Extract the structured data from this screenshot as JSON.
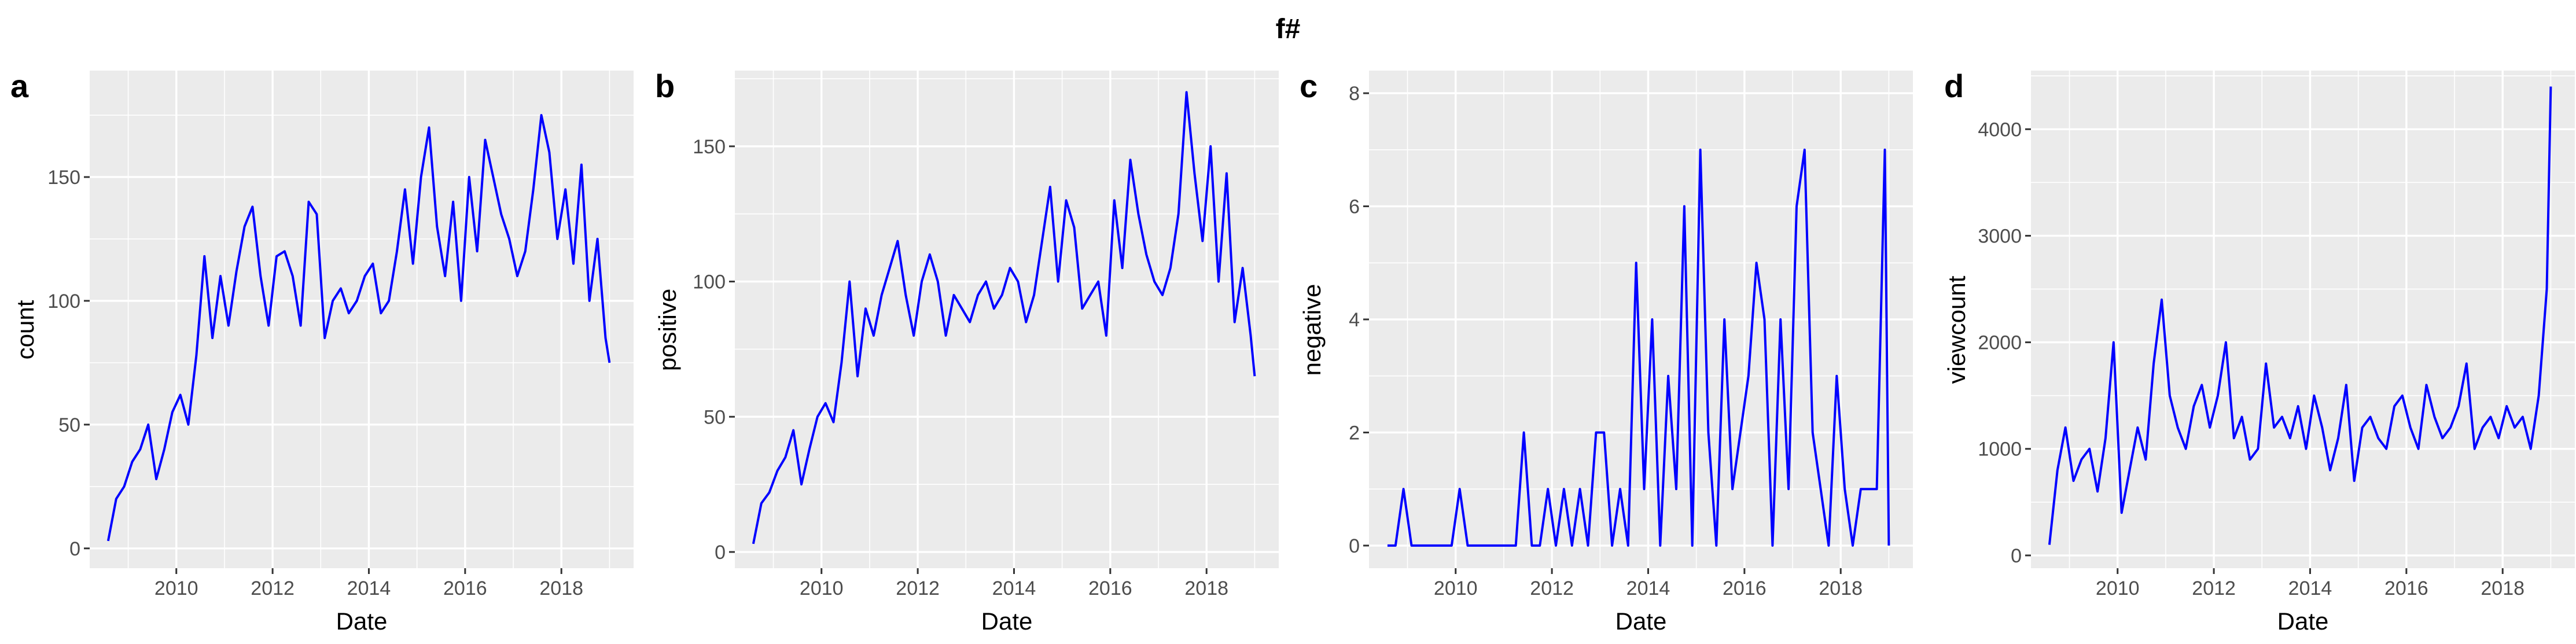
{
  "figure": {
    "title": "f#"
  },
  "chart_data": [
    {
      "panel": "a",
      "type": "line",
      "xlabel": "Date",
      "ylabel": "count",
      "xlim": [
        2008.2,
        2019.5
      ],
      "ylim": [
        -8,
        193
      ],
      "xticks": [
        2010,
        2012,
        2014,
        2016,
        2018
      ],
      "yticks": [
        0,
        50,
        100,
        150
      ],
      "color": "#0000ff",
      "x": [
        "2008-08",
        "2008-10",
        "2008-12",
        "2009-02",
        "2009-04",
        "2009-06",
        "2009-08",
        "2009-10",
        "2009-12",
        "2010-02",
        "2010-04",
        "2010-06",
        "2010-08",
        "2010-10",
        "2010-12",
        "2011-02",
        "2011-04",
        "2011-06",
        "2011-08",
        "2011-10",
        "2011-12",
        "2012-02",
        "2012-04",
        "2012-06",
        "2012-08",
        "2012-10",
        "2012-12",
        "2013-02",
        "2013-04",
        "2013-06",
        "2013-08",
        "2013-10",
        "2013-12",
        "2014-02",
        "2014-04",
        "2014-06",
        "2014-08",
        "2014-10",
        "2014-12",
        "2015-02",
        "2015-04",
        "2015-06",
        "2015-08",
        "2015-10",
        "2015-12",
        "2016-02",
        "2016-04",
        "2016-06",
        "2016-08",
        "2016-10",
        "2016-12",
        "2017-02",
        "2017-04",
        "2017-06",
        "2017-08",
        "2017-10",
        "2017-12",
        "2018-02",
        "2018-04",
        "2018-06",
        "2018-08",
        "2018-10",
        "2018-12",
        "2019-01"
      ],
      "values": [
        3,
        20,
        25,
        35,
        40,
        50,
        28,
        40,
        55,
        62,
        50,
        78,
        118,
        85,
        110,
        90,
        112,
        130,
        138,
        110,
        90,
        118,
        120,
        110,
        90,
        140,
        135,
        85,
        100,
        105,
        95,
        100,
        110,
        115,
        95,
        100,
        120,
        145,
        115,
        150,
        170,
        130,
        110,
        140,
        100,
        150,
        120,
        165,
        150,
        135,
        125,
        110,
        120,
        145,
        175,
        160,
        125,
        145,
        115,
        155,
        100,
        125,
        85,
        75
      ]
    },
    {
      "panel": "b",
      "type": "line",
      "xlabel": "Date",
      "ylabel": "positive",
      "xlim": [
        2008.2,
        2019.5
      ],
      "ylim": [
        -6,
        178
      ],
      "xticks": [
        2010,
        2012,
        2014,
        2016,
        2018
      ],
      "yticks": [
        0,
        50,
        100,
        150
      ],
      "color": "#0000ff",
      "x": [
        "2008-08",
        "2008-10",
        "2008-12",
        "2009-02",
        "2009-04",
        "2009-06",
        "2009-08",
        "2009-10",
        "2009-12",
        "2010-02",
        "2010-04",
        "2010-06",
        "2010-08",
        "2010-10",
        "2010-12",
        "2011-02",
        "2011-04",
        "2011-06",
        "2011-08",
        "2011-10",
        "2011-12",
        "2012-02",
        "2012-04",
        "2012-06",
        "2012-08",
        "2012-10",
        "2012-12",
        "2013-02",
        "2013-04",
        "2013-06",
        "2013-08",
        "2013-10",
        "2013-12",
        "2014-02",
        "2014-04",
        "2014-06",
        "2014-08",
        "2014-10",
        "2014-12",
        "2015-02",
        "2015-04",
        "2015-06",
        "2015-08",
        "2015-10",
        "2015-12",
        "2016-02",
        "2016-04",
        "2016-06",
        "2016-08",
        "2016-10",
        "2016-12",
        "2017-02",
        "2017-04",
        "2017-06",
        "2017-08",
        "2017-10",
        "2017-12",
        "2018-02",
        "2018-04",
        "2018-06",
        "2018-08",
        "2018-10",
        "2018-12",
        "2019-01"
      ],
      "values": [
        3,
        18,
        22,
        30,
        35,
        45,
        25,
        38,
        50,
        55,
        48,
        70,
        100,
        65,
        90,
        80,
        95,
        105,
        115,
        95,
        80,
        100,
        110,
        100,
        80,
        95,
        90,
        85,
        95,
        100,
        90,
        95,
        105,
        100,
        85,
        95,
        115,
        135,
        100,
        130,
        120,
        90,
        95,
        100,
        80,
        130,
        105,
        145,
        125,
        110,
        100,
        95,
        105,
        125,
        170,
        140,
        115,
        150,
        100,
        140,
        85,
        105,
        80,
        65
      ]
    },
    {
      "panel": "c",
      "type": "line",
      "xlabel": "Date",
      "ylabel": "negative",
      "xlim": [
        2008.2,
        2019.5
      ],
      "ylim": [
        -0.4,
        8.4
      ],
      "xticks": [
        2010,
        2012,
        2014,
        2016,
        2018
      ],
      "yticks": [
        0,
        2,
        4,
        6,
        8
      ],
      "color": "#0000ff",
      "x": [
        "2008-08",
        "2008-10",
        "2008-12",
        "2009-02",
        "2009-04",
        "2009-06",
        "2009-08",
        "2009-10",
        "2009-12",
        "2010-02",
        "2010-04",
        "2010-06",
        "2010-08",
        "2010-10",
        "2010-12",
        "2011-02",
        "2011-04",
        "2011-06",
        "2011-08",
        "2011-10",
        "2011-12",
        "2012-02",
        "2012-04",
        "2012-06",
        "2012-08",
        "2012-10",
        "2012-12",
        "2013-02",
        "2013-04",
        "2013-06",
        "2013-08",
        "2013-10",
        "2013-12",
        "2014-02",
        "2014-04",
        "2014-06",
        "2014-08",
        "2014-10",
        "2014-12",
        "2015-02",
        "2015-04",
        "2015-06",
        "2015-08",
        "2015-10",
        "2015-12",
        "2016-02",
        "2016-04",
        "2016-06",
        "2016-08",
        "2016-10",
        "2016-12",
        "2017-02",
        "2017-04",
        "2017-06",
        "2017-08",
        "2017-10",
        "2017-12",
        "2018-02",
        "2018-04",
        "2018-06",
        "2018-08",
        "2018-10",
        "2018-12",
        "2019-01"
      ],
      "values": [
        0,
        0,
        1,
        0,
        0,
        0,
        0,
        0,
        0,
        1,
        0,
        0,
        0,
        0,
        0,
        0,
        0,
        2,
        0,
        0,
        1,
        0,
        1,
        0,
        1,
        0,
        2,
        2,
        0,
        1,
        0,
        5,
        1,
        4,
        0,
        3,
        1,
        6,
        0,
        7,
        2,
        0,
        4,
        1,
        2,
        3,
        5,
        4,
        0,
        4,
        1,
        6,
        7,
        2,
        1,
        0,
        3,
        1,
        0,
        1,
        1,
        1,
        7,
        0
      ]
    },
    {
      "panel": "d",
      "type": "line",
      "xlabel": "Date",
      "ylabel": "viewcount",
      "xlim": [
        2008.2,
        2019.5
      ],
      "ylim": [
        -120,
        4550
      ],
      "xticks": [
        2010,
        2012,
        2014,
        2016,
        2018
      ],
      "yticks": [
        0,
        1000,
        2000,
        3000,
        4000
      ],
      "color": "#0000ff",
      "x": [
        "2008-08",
        "2008-10",
        "2008-12",
        "2009-02",
        "2009-04",
        "2009-06",
        "2009-08",
        "2009-10",
        "2009-12",
        "2010-02",
        "2010-04",
        "2010-06",
        "2010-08",
        "2010-10",
        "2010-12",
        "2011-02",
        "2011-04",
        "2011-06",
        "2011-08",
        "2011-10",
        "2011-12",
        "2012-02",
        "2012-04",
        "2012-06",
        "2012-08",
        "2012-10",
        "2012-12",
        "2013-02",
        "2013-04",
        "2013-06",
        "2013-08",
        "2013-10",
        "2013-12",
        "2014-02",
        "2014-04",
        "2014-06",
        "2014-08",
        "2014-10",
        "2014-12",
        "2015-02",
        "2015-04",
        "2015-06",
        "2015-08",
        "2015-10",
        "2015-12",
        "2016-02",
        "2016-04",
        "2016-06",
        "2016-08",
        "2016-10",
        "2016-12",
        "2017-02",
        "2017-04",
        "2017-06",
        "2017-08",
        "2017-10",
        "2017-12",
        "2018-02",
        "2018-04",
        "2018-06",
        "2018-08",
        "2018-10",
        "2018-12",
        "2019-01"
      ],
      "values": [
        100,
        800,
        1200,
        700,
        900,
        1000,
        600,
        1100,
        2000,
        400,
        800,
        1200,
        900,
        1800,
        2400,
        1500,
        1200,
        1000,
        1400,
        1600,
        1200,
        1500,
        2000,
        1100,
        1300,
        900,
        1000,
        1800,
        1200,
        1300,
        1100,
        1400,
        1000,
        1500,
        1200,
        800,
        1100,
        1600,
        700,
        1200,
        1300,
        1100,
        1000,
        1400,
        1500,
        1200,
        1000,
        1600,
        1300,
        1100,
        1200,
        1400,
        1800,
        1000,
        1200,
        1300,
        1100,
        1400,
        1200,
        1300,
        1000,
        1500,
        2500,
        4400
      ]
    }
  ]
}
